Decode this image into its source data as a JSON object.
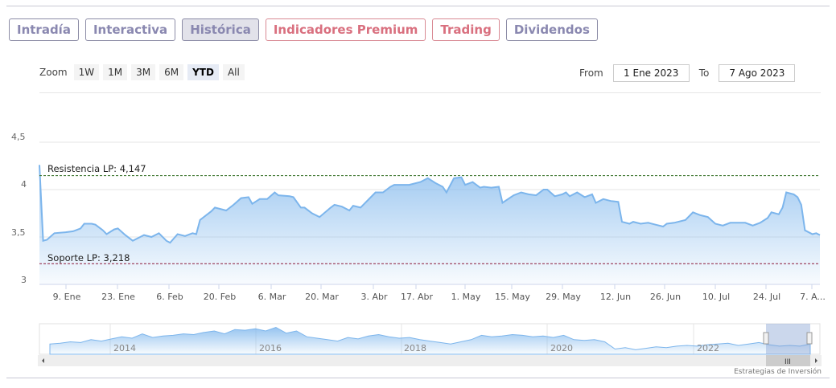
{
  "tabs": [
    {
      "label": "Intradía",
      "style": "normal"
    },
    {
      "label": "Interactiva",
      "style": "normal"
    },
    {
      "label": "Histórica",
      "style": "active"
    },
    {
      "label": "Indicadores Premium",
      "style": "premium"
    },
    {
      "label": "Trading",
      "style": "premium"
    },
    {
      "label": "Dividendos",
      "style": "normal"
    }
  ],
  "zoom": {
    "label": "Zoom",
    "buttons": [
      "1W",
      "1M",
      "3M",
      "6M",
      "YTD",
      "All"
    ],
    "selected": "YTD"
  },
  "range": {
    "from_label": "From",
    "from_value": "1 Ene 2023",
    "to_label": "To",
    "to_value": "7 Ago 2023"
  },
  "navigator": {
    "years": [
      "2014",
      "2016",
      "2018",
      "2020",
      "2022"
    ]
  },
  "credit": "Estrategias de Inversión",
  "colors": {
    "line": "#7cb5ec",
    "resistance": "#2e6b1f",
    "support": "#8b1a3a"
  },
  "chart_data": {
    "type": "area",
    "title": "",
    "xlabel": "",
    "ylabel": "",
    "ylim": [
      3,
      4.5
    ],
    "yticks": [
      "3",
      "3,5",
      "4",
      "4,5"
    ],
    "xticks": [
      "9. Ene",
      "23. Ene",
      "6. Feb",
      "20. Feb",
      "6. Mar",
      "20. Mar",
      "3. Abr",
      "17. Abr",
      "1. May",
      "15. May",
      "29. May",
      "12. Jun",
      "26. Jun",
      "10. Jul",
      "24. Jul",
      "7. A..."
    ],
    "x_unit": "days since 2 Jan 2023",
    "xlim": [
      0,
      209
    ],
    "points": [
      [
        0,
        4.26
      ],
      [
        1,
        3.46
      ],
      [
        2,
        3.47
      ],
      [
        4,
        3.54
      ],
      [
        7,
        3.55
      ],
      [
        9,
        3.56
      ],
      [
        11,
        3.59
      ],
      [
        12,
        3.64
      ],
      [
        14,
        3.64
      ],
      [
        15,
        3.63
      ],
      [
        17,
        3.57
      ],
      [
        18,
        3.53
      ],
      [
        20,
        3.58
      ],
      [
        21,
        3.59
      ],
      [
        23,
        3.52
      ],
      [
        25,
        3.46
      ],
      [
        27,
        3.5
      ],
      [
        28,
        3.52
      ],
      [
        30,
        3.5
      ],
      [
        32,
        3.54
      ],
      [
        34,
        3.46
      ],
      [
        35,
        3.44
      ],
      [
        37,
        3.53
      ],
      [
        39,
        3.51
      ],
      [
        41,
        3.54
      ],
      [
        42,
        3.53
      ],
      [
        43,
        3.68
      ],
      [
        46,
        3.77
      ],
      [
        47,
        3.81
      ],
      [
        50,
        3.78
      ],
      [
        52,
        3.84
      ],
      [
        54,
        3.91
      ],
      [
        56,
        3.92
      ],
      [
        57,
        3.85
      ],
      [
        59,
        3.9
      ],
      [
        61,
        3.9
      ],
      [
        63,
        3.97
      ],
      [
        64,
        3.94
      ],
      [
        67,
        3.93
      ],
      [
        68,
        3.92
      ],
      [
        70,
        3.81
      ],
      [
        71,
        3.81
      ],
      [
        73,
        3.75
      ],
      [
        75,
        3.71
      ],
      [
        78,
        3.81
      ],
      [
        79,
        3.84
      ],
      [
        81,
        3.82
      ],
      [
        83,
        3.78
      ],
      [
        84,
        3.83
      ],
      [
        86,
        3.81
      ],
      [
        88,
        3.89
      ],
      [
        90,
        3.97
      ],
      [
        91,
        3.97
      ],
      [
        92,
        3.97
      ],
      [
        94,
        4.03
      ],
      [
        95,
        4.05
      ],
      [
        97,
        4.05
      ],
      [
        99,
        4.05
      ],
      [
        102,
        4.08
      ],
      [
        104,
        4.12
      ],
      [
        106,
        4.07
      ],
      [
        108,
        4.03
      ],
      [
        109,
        3.97
      ],
      [
        111,
        4.12
      ],
      [
        113,
        4.13
      ],
      [
        114,
        4.05
      ],
      [
        116,
        4.08
      ],
      [
        118,
        4.02
      ],
      [
        119,
        4.03
      ],
      [
        121,
        4.02
      ],
      [
        123,
        4.03
      ],
      [
        124,
        3.86
      ],
      [
        127,
        3.94
      ],
      [
        129,
        3.97
      ],
      [
        131,
        3.95
      ],
      [
        133,
        3.94
      ],
      [
        135,
        4.0
      ],
      [
        136,
        4.0
      ],
      [
        138,
        3.93
      ],
      [
        140,
        3.95
      ],
      [
        141,
        3.97
      ],
      [
        142,
        3.93
      ],
      [
        144,
        3.97
      ],
      [
        146,
        3.92
      ],
      [
        148,
        3.95
      ],
      [
        149,
        3.86
      ],
      [
        151,
        3.9
      ],
      [
        153,
        3.88
      ],
      [
        155,
        3.87
      ],
      [
        156,
        3.66
      ],
      [
        158,
        3.64
      ],
      [
        159,
        3.66
      ],
      [
        161,
        3.64
      ],
      [
        163,
        3.65
      ],
      [
        165,
        3.63
      ],
      [
        167,
        3.61
      ],
      [
        168,
        3.64
      ],
      [
        170,
        3.65
      ],
      [
        173,
        3.68
      ],
      [
        175,
        3.76
      ],
      [
        177,
        3.73
      ],
      [
        179,
        3.71
      ],
      [
        181,
        3.64
      ],
      [
        183,
        3.62
      ],
      [
        185,
        3.65
      ],
      [
        187,
        3.65
      ],
      [
        189,
        3.65
      ],
      [
        191,
        3.62
      ],
      [
        193,
        3.65
      ],
      [
        195,
        3.7
      ],
      [
        196,
        3.76
      ],
      [
        198,
        3.74
      ],
      [
        199,
        3.81
      ],
      [
        200,
        3.97
      ],
      [
        202,
        3.95
      ],
      [
        203,
        3.92
      ],
      [
        204,
        3.84
      ],
      [
        205,
        3.57
      ],
      [
        207,
        3.53
      ],
      [
        208,
        3.54
      ],
      [
        209,
        3.52
      ]
    ],
    "annotations": [
      {
        "label": "Resistencia LP: 4,147",
        "value": 4.147
      },
      {
        "label": "Soporte LP: 3,218",
        "value": 3.218
      }
    ]
  }
}
